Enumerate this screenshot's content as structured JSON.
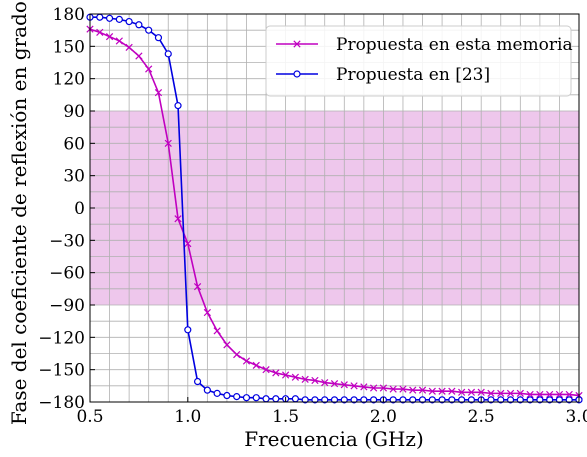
{
  "chart_data": {
    "type": "line",
    "xlabel": "Frecuencia (GHz)",
    "ylabel": "Fase del coeficiente de reflexión en grados",
    "xlim": [
      0.5,
      3.0
    ],
    "ylim": [
      -180,
      180
    ],
    "xticks": [
      "0.5",
      "1.0",
      "1.5",
      "2.0",
      "2.5",
      "3.0"
    ],
    "yticks": [
      "180",
      "150",
      "120",
      "90",
      "60",
      "30",
      "0",
      "−30",
      "−60",
      "−90",
      "−120",
      "−150",
      "−180"
    ],
    "grid": true,
    "legend_position": "top-right",
    "band": {
      "from": -90,
      "to": 90,
      "color": "#e8b4e6"
    },
    "series": [
      {
        "name": "Propuesta en esta memoria",
        "color": "#c000c0",
        "marker": "x",
        "x": [
          0.5,
          0.55,
          0.6,
          0.65,
          0.7,
          0.75,
          0.8,
          0.85,
          0.9,
          0.95,
          1.0,
          1.05,
          1.1,
          1.15,
          1.2,
          1.25,
          1.3,
          1.35,
          1.4,
          1.45,
          1.5,
          1.55,
          1.6,
          1.65,
          1.7,
          1.75,
          1.8,
          1.85,
          1.9,
          1.95,
          2.0,
          2.05,
          2.1,
          2.15,
          2.2,
          2.25,
          2.3,
          2.35,
          2.4,
          2.45,
          2.5,
          2.55,
          2.6,
          2.65,
          2.7,
          2.75,
          2.8,
          2.85,
          2.9,
          2.95,
          3.0
        ],
        "y": [
          166,
          163,
          159,
          155,
          149,
          141,
          129,
          107,
          60,
          -10,
          -33,
          -73,
          -97,
          -114,
          -127,
          -136,
          -142,
          -146,
          -150,
          -153,
          -155,
          -157,
          -159,
          -160,
          -162,
          -163,
          -164,
          -165,
          -166,
          -167,
          -167,
          -168,
          -168,
          -169,
          -169,
          -170,
          -170,
          -170,
          -171,
          -171,
          -171,
          -172,
          -172,
          -172,
          -172,
          -173,
          -173,
          -173,
          -173,
          -173,
          -174
        ]
      },
      {
        "name": "Propuesta en [23]",
        "color": "#0000e0",
        "marker": "o",
        "x": [
          0.5,
          0.55,
          0.6,
          0.65,
          0.7,
          0.75,
          0.8,
          0.85,
          0.9,
          0.95,
          1.0,
          1.05,
          1.1,
          1.15,
          1.2,
          1.25,
          1.3,
          1.35,
          1.4,
          1.45,
          1.5,
          1.55,
          1.6,
          1.65,
          1.7,
          1.75,
          1.8,
          1.85,
          1.9,
          1.95,
          2.0,
          2.05,
          2.1,
          2.15,
          2.2,
          2.25,
          2.3,
          2.35,
          2.4,
          2.45,
          2.5,
          2.55,
          2.6,
          2.65,
          2.7,
          2.75,
          2.8,
          2.85,
          2.9,
          2.95,
          3.0
        ],
        "y": [
          177,
          177,
          176,
          175,
          173,
          170,
          165,
          158,
          143,
          95,
          -113,
          -161,
          -169,
          -172,
          -174,
          -175,
          -176,
          -176,
          -177,
          -177,
          -177,
          -177,
          -178,
          -178,
          -178,
          -178,
          -178,
          -178,
          -178,
          -178,
          -178,
          -178,
          -178,
          -178,
          -178,
          -178,
          -178,
          -178,
          -178,
          -178,
          -178,
          -178,
          -178,
          -178,
          -178,
          -178,
          -178,
          -178,
          -178,
          -178,
          -178
        ]
      }
    ]
  }
}
